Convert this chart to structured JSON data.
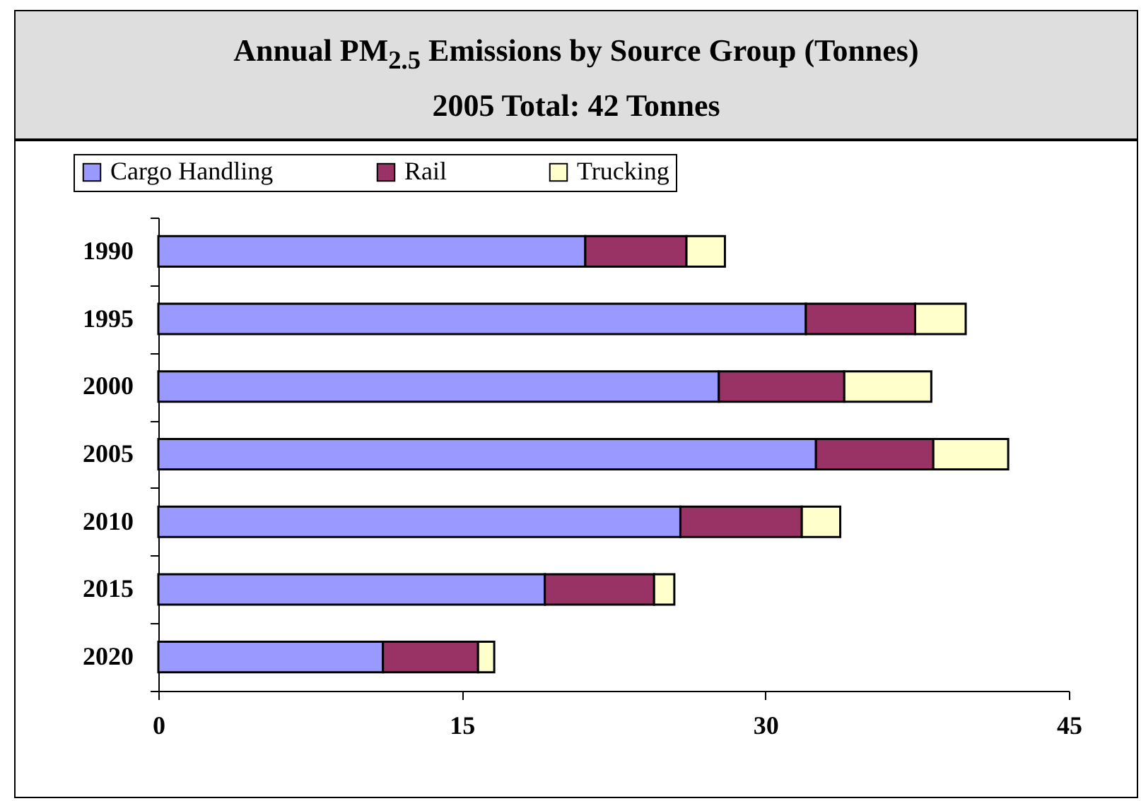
{
  "chart_data": {
    "type": "bar",
    "orientation": "horizontal",
    "stacked": true,
    "title": "Annual PM$_{2.5}$ Emissions by Source Group (Tonnes)",
    "subtitle": "2005 Total: 42 Tonnes",
    "categories": [
      "1990",
      "1995",
      "2000",
      "2005",
      "2010",
      "2015",
      "2020"
    ],
    "series": [
      {
        "name": "Cargo Handling",
        "color": "#9999ff",
        "values": [
          21.1,
          32.0,
          27.7,
          32.5,
          25.8,
          19.1,
          11.1
        ]
      },
      {
        "name": "Rail",
        "color": "#993366",
        "values": [
          5.0,
          5.4,
          6.2,
          5.8,
          6.0,
          5.4,
          4.7
        ]
      },
      {
        "name": "Trucking",
        "color": "#ffffcc",
        "values": [
          1.9,
          2.5,
          4.3,
          3.7,
          1.9,
          1.0,
          0.8
        ]
      }
    ],
    "xlim": [
      0,
      45
    ],
    "xticks": [
      0,
      15,
      30,
      45
    ],
    "grid": false,
    "legend": "top left"
  }
}
